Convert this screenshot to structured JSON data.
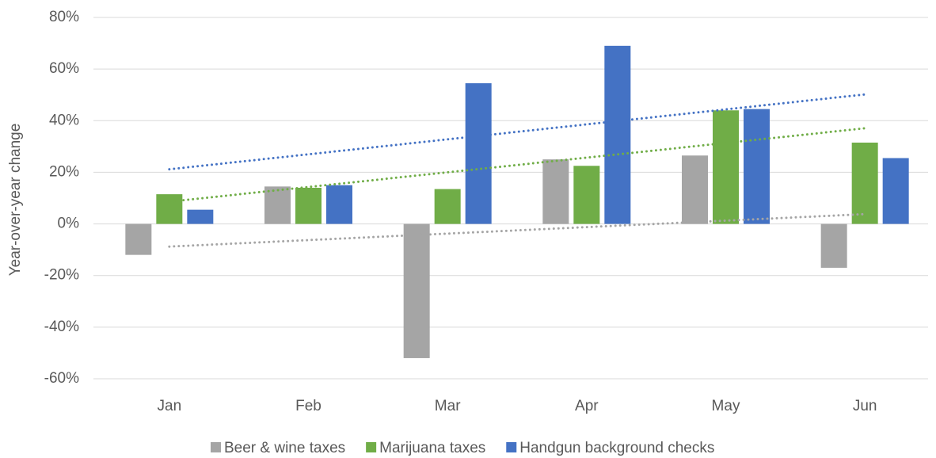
{
  "chart_data": {
    "type": "bar",
    "y_label": "Year-over-year change",
    "categories": [
      "Jan",
      "Feb",
      "Mar",
      "Apr",
      "May",
      "Jun"
    ],
    "series": [
      {
        "name": "Beer & wine taxes",
        "color": "#a5a5a5",
        "values": [
          -12,
          14.5,
          -52,
          25,
          26.5,
          -17
        ]
      },
      {
        "name": "Marijuana taxes",
        "color": "#70ad47",
        "values": [
          11.5,
          14,
          13.5,
          22.5,
          44,
          31.5
        ]
      },
      {
        "name": "Handgun background checks",
        "color": "#4472c4",
        "values": [
          5.5,
          15,
          54.5,
          69,
          44.5,
          25.5
        ]
      }
    ],
    "ylim": [
      -60,
      80
    ],
    "yticks": [
      {
        "value": -60,
        "label": "-60%"
      },
      {
        "value": -40,
        "label": "-40%"
      },
      {
        "value": -20,
        "label": "-20%"
      },
      {
        "value": 0,
        "label": "0%"
      },
      {
        "value": 20,
        "label": "20%"
      },
      {
        "value": 40,
        "label": "40%"
      },
      {
        "value": 60,
        "label": "60%"
      },
      {
        "value": 80,
        "label": "80%"
      }
    ],
    "grid": true,
    "trendline": true,
    "legend": "bottom"
  }
}
